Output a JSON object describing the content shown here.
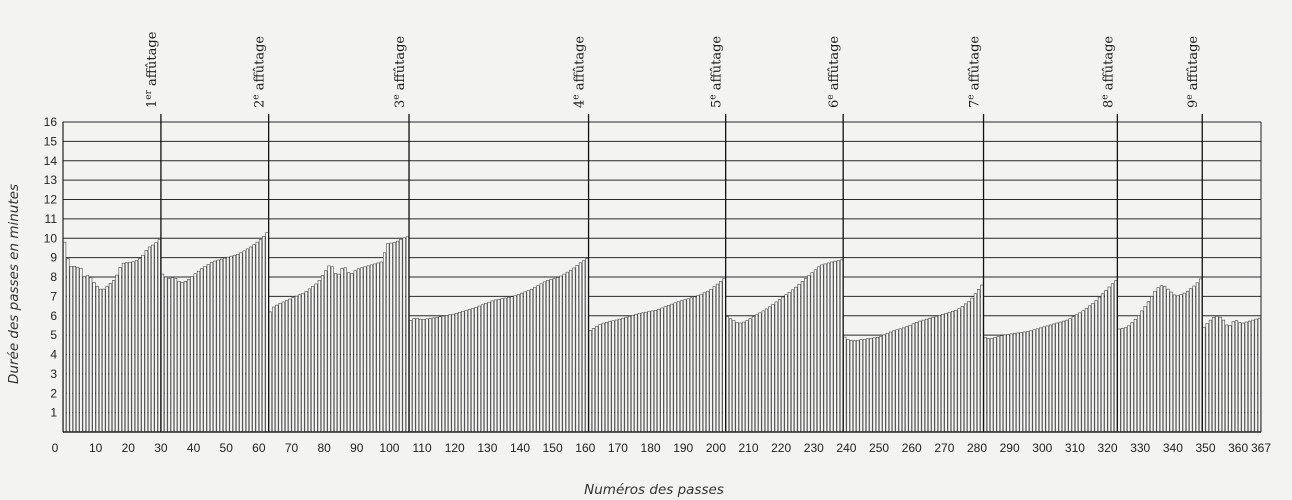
{
  "chart_data": {
    "type": "bar",
    "ylabel": "Durée des passes en minutes",
    "xlabel": "Numéros des passes",
    "xlim": [
      0,
      367
    ],
    "ylim": [
      0,
      16
    ],
    "grid": true,
    "y_ticks": [
      1,
      2,
      3,
      4,
      5,
      6,
      7,
      8,
      9,
      10,
      11,
      12,
      13,
      14,
      15,
      16
    ],
    "x_ticks": [
      0,
      10,
      20,
      30,
      40,
      50,
      60,
      70,
      80,
      90,
      100,
      110,
      120,
      130,
      140,
      150,
      160,
      170,
      180,
      190,
      200,
      210,
      220,
      230,
      240,
      250,
      260,
      270,
      280,
      290,
      300,
      310,
      320,
      330,
      340,
      350,
      360,
      367
    ],
    "sharpenings": [
      {
        "pass": 30,
        "ordinal": "1",
        "sup": "er",
        "label": "affûtage"
      },
      {
        "pass": 63,
        "ordinal": "2",
        "sup": "e",
        "label": "affûtage"
      },
      {
        "pass": 106,
        "ordinal": "3",
        "sup": "e",
        "label": "affûtage"
      },
      {
        "pass": 161,
        "ordinal": "4",
        "sup": "e",
        "label": "affûtage"
      },
      {
        "pass": 203,
        "ordinal": "5",
        "sup": "e",
        "label": "affûtage"
      },
      {
        "pass": 239,
        "ordinal": "6",
        "sup": "e",
        "label": "affûtage"
      },
      {
        "pass": 282,
        "ordinal": "7",
        "sup": "e",
        "label": "affûtage"
      },
      {
        "pass": 323,
        "ordinal": "8",
        "sup": "e",
        "label": "affûtage"
      },
      {
        "pass": 349,
        "ordinal": "9",
        "sup": "e",
        "label": "affûtage"
      }
    ],
    "envelope": [
      [
        0,
        9.8
      ],
      [
        1,
        9.8
      ],
      [
        2,
        8.1
      ],
      [
        3,
        9.0
      ],
      [
        4,
        8.1
      ],
      [
        5,
        8.9
      ],
      [
        6,
        8.0
      ],
      [
        8,
        8.1
      ],
      [
        10,
        7.6
      ],
      [
        12,
        7.3
      ],
      [
        14,
        7.6
      ],
      [
        16,
        7.9
      ],
      [
        18,
        8.7
      ],
      [
        22,
        8.8
      ],
      [
        24,
        9.0
      ],
      [
        26,
        9.5
      ],
      [
        28,
        9.7
      ],
      [
        30,
        10.0
      ],
      [
        30,
        8.2
      ],
      [
        31,
        8.1
      ],
      [
        32,
        7.9
      ],
      [
        34,
        8.0
      ],
      [
        36,
        7.7
      ],
      [
        38,
        7.8
      ],
      [
        40,
        8.1
      ],
      [
        43,
        8.5
      ],
      [
        46,
        8.8
      ],
      [
        50,
        9.0
      ],
      [
        54,
        9.2
      ],
      [
        58,
        9.6
      ],
      [
        61,
        10.0
      ],
      [
        63,
        10.4
      ],
      [
        63,
        6.0
      ],
      [
        64,
        6.4
      ],
      [
        66,
        6.6
      ],
      [
        70,
        6.9
      ],
      [
        74,
        7.2
      ],
      [
        78,
        7.7
      ],
      [
        80,
        8.2
      ],
      [
        82,
        8.7
      ],
      [
        84,
        8.0
      ],
      [
        86,
        8.6
      ],
      [
        88,
        8.1
      ],
      [
        90,
        8.4
      ],
      [
        94,
        8.6
      ],
      [
        98,
        8.8
      ],
      [
        99,
        9.7
      ],
      [
        102,
        9.8
      ],
      [
        104,
        10.0
      ],
      [
        106,
        10.1
      ],
      [
        106,
        5.7
      ],
      [
        108,
        5.9
      ],
      [
        110,
        5.8
      ],
      [
        114,
        5.9
      ],
      [
        120,
        6.1
      ],
      [
        126,
        6.4
      ],
      [
        132,
        6.8
      ],
      [
        138,
        7.0
      ],
      [
        144,
        7.4
      ],
      [
        148,
        7.8
      ],
      [
        152,
        8.0
      ],
      [
        156,
        8.4
      ],
      [
        159,
        8.8
      ],
      [
        161,
        9.0
      ],
      [
        161,
        5.2
      ],
      [
        163,
        5.4
      ],
      [
        165,
        5.6
      ],
      [
        170,
        5.8
      ],
      [
        176,
        6.1
      ],
      [
        182,
        6.3
      ],
      [
        188,
        6.7
      ],
      [
        194,
        7.0
      ],
      [
        198,
        7.3
      ],
      [
        201,
        7.7
      ],
      [
        203,
        8.0
      ],
      [
        203,
        6.0
      ],
      [
        205,
        5.8
      ],
      [
        207,
        5.6
      ],
      [
        209,
        5.7
      ],
      [
        212,
        6.0
      ],
      [
        216,
        6.4
      ],
      [
        220,
        6.9
      ],
      [
        224,
        7.4
      ],
      [
        228,
        8.0
      ],
      [
        232,
        8.6
      ],
      [
        236,
        8.8
      ],
      [
        239,
        8.9
      ],
      [
        239,
        5.0
      ],
      [
        240,
        4.8
      ],
      [
        242,
        4.7
      ],
      [
        246,
        4.8
      ],
      [
        250,
        4.9
      ],
      [
        254,
        5.2
      ],
      [
        258,
        5.4
      ],
      [
        262,
        5.7
      ],
      [
        266,
        5.9
      ],
      [
        270,
        6.1
      ],
      [
        274,
        6.3
      ],
      [
        278,
        6.8
      ],
      [
        282,
        7.7
      ],
      [
        282,
        4.9
      ],
      [
        284,
        4.8
      ],
      [
        288,
        5.0
      ],
      [
        292,
        5.1
      ],
      [
        296,
        5.2
      ],
      [
        300,
        5.4
      ],
      [
        304,
        5.6
      ],
      [
        308,
        5.8
      ],
      [
        312,
        6.2
      ],
      [
        316,
        6.7
      ],
      [
        320,
        7.4
      ],
      [
        323,
        7.9
      ],
      [
        323,
        5.3
      ],
      [
        326,
        5.4
      ],
      [
        329,
        5.9
      ],
      [
        332,
        6.6
      ],
      [
        335,
        7.4
      ],
      [
        337,
        7.6
      ],
      [
        339,
        7.3
      ],
      [
        341,
        7.0
      ],
      [
        344,
        7.2
      ],
      [
        347,
        7.6
      ],
      [
        349,
        8.0
      ],
      [
        349,
        5.3
      ],
      [
        351,
        5.7
      ],
      [
        353,
        6.0
      ],
      [
        355,
        5.9
      ],
      [
        357,
        5.4
      ],
      [
        359,
        5.8
      ],
      [
        361,
        5.6
      ],
      [
        363,
        5.7
      ],
      [
        367,
        5.9
      ]
    ]
  }
}
